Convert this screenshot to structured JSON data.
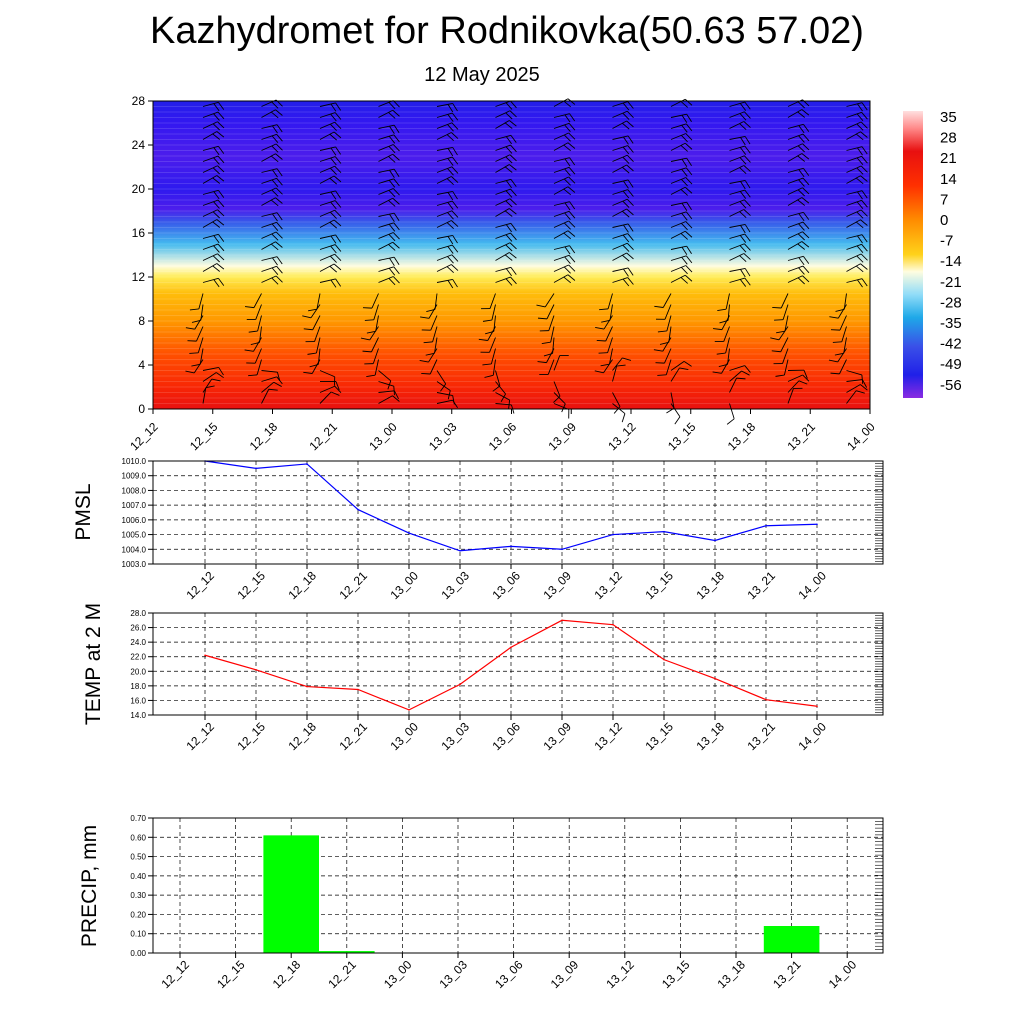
{
  "title": "Kazhydromet for Rodnikovka(50.63 57.02)",
  "subtitle": "12 May 2025",
  "colors": {
    "pmsl_line": "#0000ff",
    "temp_line": "#ff0000",
    "precip_bar": "#00ff00",
    "grid": "#000000"
  },
  "chart_data": [
    {
      "name": "cross-section",
      "type": "heatmap",
      "x_ticks": [
        "12_12",
        "12_15",
        "12_18",
        "12_21",
        "13_00",
        "13_03",
        "13_06",
        "13_09",
        "13_12",
        "13_15",
        "13_18",
        "13_21",
        "14_00"
      ],
      "y_ticks": [
        "0",
        "4",
        "8",
        "12",
        "16",
        "20",
        "24",
        "28"
      ],
      "ylim": [
        0,
        28
      ],
      "colorbar": {
        "labels": [
          "35",
          "28",
          "21",
          "14",
          "7",
          "0",
          "-7",
          "-14",
          "-21",
          "-28",
          "-35",
          "-42",
          "-49",
          "-56"
        ],
        "range": [
          -63,
          42
        ]
      },
      "temperature_profile": [
        {
          "level": 0,
          "value": 28
        },
        {
          "level": 2,
          "value": 23
        },
        {
          "level": 5,
          "value": 18
        },
        {
          "level": 8,
          "value": 10
        },
        {
          "level": 10.5,
          "value": 4
        },
        {
          "level": 12,
          "value": -6
        },
        {
          "level": 13,
          "value": -14
        },
        {
          "level": 15,
          "value": -24
        },
        {
          "level": 17,
          "value": -40
        },
        {
          "level": 18.2,
          "value": -58
        },
        {
          "level": 20,
          "value": -54
        },
        {
          "level": 23,
          "value": -58
        },
        {
          "level": 26,
          "value": -56
        },
        {
          "level": 28,
          "value": -50
        }
      ]
    },
    {
      "name": "pmsl",
      "type": "line",
      "ylabel": "PMSL",
      "x": [
        "12_12",
        "12_15",
        "12_18",
        "12_21",
        "13_00",
        "13_03",
        "13_06",
        "13_09",
        "13_12",
        "13_15",
        "13_18",
        "13_21",
        "14_00"
      ],
      "values": [
        1010.0,
        1009.5,
        1009.8,
        1006.7,
        1005.1,
        1003.9,
        1004.2,
        1004.0,
        1005.0,
        1005.2,
        1004.6,
        1005.6,
        1005.7
      ],
      "ylim": [
        1003.0,
        1010.0
      ],
      "y_ticks": [
        "1003.0",
        "1004.0",
        "1005.0",
        "1006.0",
        "1007.0",
        "1008.0",
        "1009.0",
        "1010.0"
      ]
    },
    {
      "name": "temp",
      "type": "line",
      "ylabel": "TEMP at 2 M",
      "x": [
        "12_12",
        "12_15",
        "12_18",
        "12_21",
        "13_00",
        "13_03",
        "13_06",
        "13_09",
        "13_12",
        "13_15",
        "13_18",
        "13_21",
        "14_00"
      ],
      "values": [
        22.2,
        20.2,
        17.9,
        17.5,
        14.7,
        18.2,
        23.3,
        27.0,
        26.4,
        21.6,
        19.0,
        16.1,
        15.2
      ],
      "ylim": [
        14.0,
        28.0
      ],
      "y_ticks": [
        "14.0",
        "16.0",
        "18.0",
        "20.0",
        "22.0",
        "24.0",
        "26.0",
        "28.0"
      ]
    },
    {
      "name": "precip",
      "type": "bar",
      "ylabel": "PRECIP, mm",
      "categories": [
        "12_12",
        "12_15",
        "12_18",
        "12_21",
        "13_00",
        "13_03",
        "13_06",
        "13_09",
        "13_12",
        "13_15",
        "13_18",
        "13_21",
        "14_00"
      ],
      "values": [
        0,
        0,
        0.61,
        0.01,
        0,
        0,
        0,
        0,
        0,
        0,
        0,
        0.14,
        0
      ],
      "ylim": [
        0,
        0.7
      ],
      "y_ticks": [
        "0.00",
        "0.10",
        "0.20",
        "0.30",
        "0.40",
        "0.50",
        "0.60",
        "0.70"
      ]
    }
  ]
}
